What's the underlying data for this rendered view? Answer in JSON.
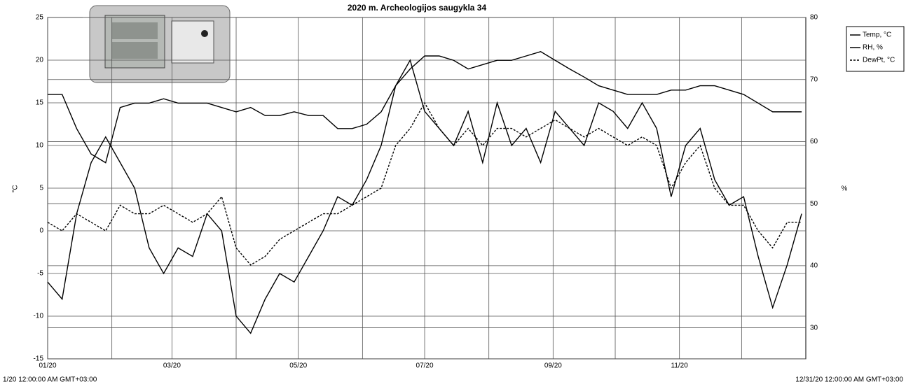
{
  "chart_data": {
    "type": "line",
    "title": "2020 m. Archeologijos saugykla 34",
    "ylabel": "°C",
    "y2label": "%",
    "start_label": "1/20 12:00:00 AM GMT+03:00",
    "end_label": "12/31/20 12:00:00 AM GMT+03:00",
    "x": [
      0,
      7,
      14,
      21,
      28,
      35,
      42,
      49,
      56,
      63,
      70,
      77,
      84,
      91,
      98,
      105,
      112,
      119,
      126,
      133,
      140,
      147,
      154,
      161,
      168,
      175,
      182,
      189,
      196,
      203,
      210,
      217,
      224,
      231,
      238,
      245,
      252,
      259,
      266,
      273,
      280,
      287,
      294,
      301,
      308,
      315,
      322,
      329,
      336,
      343,
      350,
      357,
      364
    ],
    "xlim": [
      0,
      366
    ],
    "xticks": [
      {
        "value": 0,
        "label": "01/20"
      },
      {
        "value": 60,
        "label": "03/20"
      },
      {
        "value": 121,
        "label": "05/20"
      },
      {
        "value": 182,
        "label": "07/20"
      },
      {
        "value": 244,
        "label": "09/20"
      },
      {
        "value": 305,
        "label": "11/20"
      }
    ],
    "xgrid": [
      31,
      91,
      152,
      213,
      274,
      335
    ],
    "ylim": [
      -15,
      25
    ],
    "yticks": [
      -15,
      -10,
      -5,
      0,
      5,
      10,
      15,
      20,
      25
    ],
    "y2lim": [
      25,
      80
    ],
    "y2ticks": [
      30,
      40,
      50,
      60,
      70,
      80
    ],
    "grid": true,
    "legend": "right",
    "series": [
      {
        "name": "Temp, °C",
        "color": "#000000",
        "style": "solid",
        "values": [
          -6,
          -8,
          2,
          8,
          11,
          8,
          5,
          -2,
          -5,
          -2,
          -3,
          2,
          0,
          -10,
          -12,
          -8,
          -5,
          -6,
          -3,
          0,
          4,
          3,
          6,
          10,
          17,
          20,
          14,
          12,
          10,
          14,
          8,
          15,
          10,
          12,
          8,
          14,
          12,
          10,
          15,
          14,
          12,
          15,
          12,
          4,
          10,
          12,
          6,
          3,
          4,
          -3,
          -9,
          -4,
          2
        ]
      },
      {
        "name": "RH, %",
        "color": "#000000",
        "style": "solid",
        "axis": "y2",
        "values": [
          67.6,
          67.6,
          62.1,
          58,
          56.6,
          65.5,
          66.2,
          66.2,
          66.9,
          66.2,
          66.2,
          66.2,
          65.5,
          64.8,
          65.5,
          64.2,
          64.2,
          64.8,
          64.2,
          64.2,
          62.1,
          62.1,
          62.8,
          64.8,
          69,
          71.7,
          73.8,
          73.8,
          73.1,
          71.7,
          72.4,
          73.1,
          73.1,
          73.8,
          74.5,
          73.1,
          71.7,
          70.4,
          69,
          68.3,
          67.6,
          67.6,
          67.6,
          68.3,
          68.3,
          69,
          69,
          68.3,
          67.6,
          66.2,
          64.8,
          64.8,
          64.8
        ]
      },
      {
        "name": "DewPt, °C",
        "color": "#000000",
        "style": "dash",
        "values": [
          1,
          0,
          2,
          1,
          0,
          3,
          2,
          2,
          3,
          2,
          1,
          2,
          4,
          -2,
          -4,
          -3,
          -1,
          0,
          1,
          2,
          2,
          3,
          4,
          5,
          10,
          12,
          15,
          12,
          10,
          12,
          10,
          12,
          12,
          11,
          12,
          13,
          12,
          11,
          12,
          11,
          10,
          11,
          10,
          5,
          8,
          10,
          5,
          3,
          3,
          0,
          -2,
          1,
          1
        ]
      }
    ]
  }
}
